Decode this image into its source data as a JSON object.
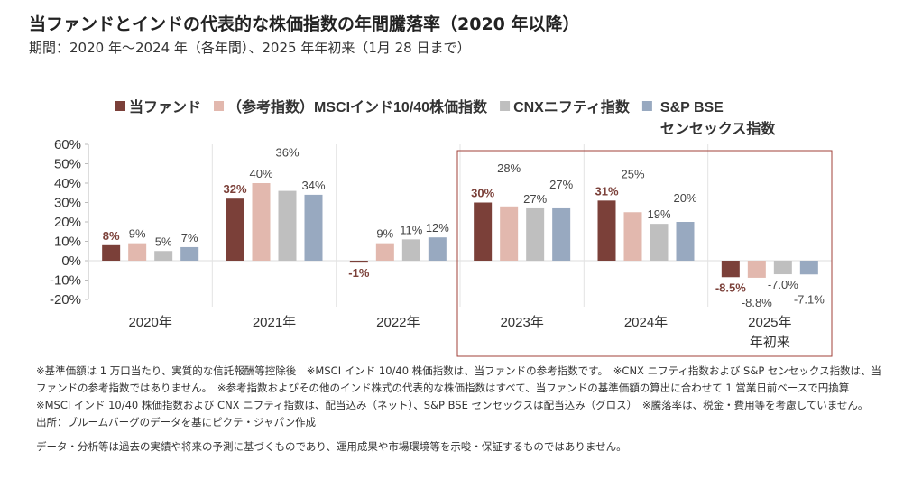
{
  "title": "当ファンドとインドの代表的な株価指数の年間騰落率（2020 年以降）",
  "subtitle": "期間：2020 年～2024 年（各年間）、2025 年年初来（1月 28 日まで）",
  "chart_data": {
    "type": "bar",
    "categories": [
      "2020年",
      "2021年",
      "2022年",
      "2023年",
      "2024年",
      "2025年\n年初来"
    ],
    "category_lines": [
      [
        "2020年"
      ],
      [
        "2021年"
      ],
      [
        "2022年"
      ],
      [
        "2023年"
      ],
      [
        "2024年"
      ],
      [
        "2025年",
        "年初来"
      ]
    ],
    "series": [
      {
        "name": "当ファンド",
        "color": "#7b4039",
        "values": [
          8,
          32,
          -1,
          30,
          31,
          -8.5
        ],
        "labels": [
          "8%",
          "32%",
          "-1%",
          "30%",
          "31%",
          "-8.5%"
        ]
      },
      {
        "name": "（参考指数）MSCIインド10/40株価指数",
        "color": "#e2b8ae",
        "values": [
          9,
          40,
          9,
          28,
          25,
          -8.8
        ],
        "labels": [
          "9%",
          "40%",
          "9%",
          "28%",
          "25%",
          "-8.8%"
        ]
      },
      {
        "name": "CNXニフティ指数",
        "color": "#bfbfbf",
        "values": [
          5,
          36,
          11,
          27,
          19,
          -7.0
        ],
        "labels": [
          "5%",
          "36%",
          "11%",
          "27%",
          "19%",
          "-7.0%"
        ]
      },
      {
        "name": "S&P BSE センセックス指数",
        "color": "#98a9c0",
        "values": [
          7,
          34,
          12,
          27,
          20,
          -7.1
        ],
        "labels": [
          "7%",
          "34%",
          "12%",
          "27%",
          "20%",
          "-7.1%"
        ]
      }
    ],
    "legend_lines": [
      "S&P BSE",
      "センセックス指数"
    ],
    "yticks": [
      "60%",
      "50%",
      "40%",
      "30%",
      "20%",
      "10%",
      "0%",
      "-10%",
      "-20%"
    ],
    "ylim": [
      -20,
      60
    ],
    "legend_position": "top",
    "grid": "vertical category separators",
    "highlight_box_color": "#a0413a",
    "highlight_categories": [
      "2023年",
      "2024年",
      "2025年"
    ]
  },
  "notes": "※基準価額は 1 万口当たり、実質的な信託報酬等控除後　※MSCI インド 10/40 株価指数は、当ファンドの参考指数です。　※CNX ニフティ指数および S&P センセックス指数は、当ファンドの参考指数ではありません。　※参考指数およびその他のインド株式の代表的な株価指数はすべて、当ファンドの基準価額の算出に合わせて 1 営業日前ベースで円換算　※MSCI インド 10/40 株価指数および CNX ニフティ指数は、配当込み（ネット）、S&P BSE センセックスは配当込み（グロス）　※騰落率は、税金・費用等を考慮していません。",
  "source": "出所：ブルームバーグのデータを基にピクテ・ジャパン作成",
  "disclaimer": "データ・分析等は過去の実績や将来の予測に基づくものであり、運用成果や市場環境等を示唆・保証するものではありません。"
}
